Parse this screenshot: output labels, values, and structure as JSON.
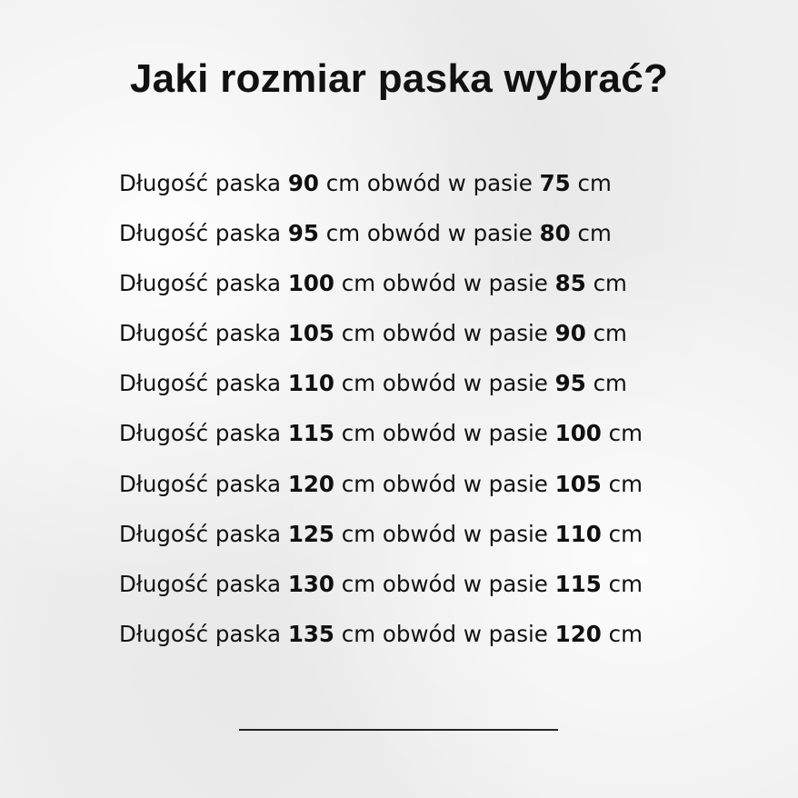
{
  "title": "Jaki rozmiar paska wybrać?",
  "labels": {
    "length_prefix": "Długość paska",
    "unit": "cm",
    "waist_text": "cm obwód w pasie"
  },
  "rows": [
    {
      "belt_length": "90",
      "waist": "75"
    },
    {
      "belt_length": "95",
      "waist": "80"
    },
    {
      "belt_length": "100",
      "waist": "85"
    },
    {
      "belt_length": "105",
      "waist": "90"
    },
    {
      "belt_length": "110",
      "waist": "95"
    },
    {
      "belt_length": "115",
      "waist": "100"
    },
    {
      "belt_length": "120",
      "waist": "105"
    },
    {
      "belt_length": "125",
      "waist": "110"
    },
    {
      "belt_length": "130",
      "waist": "115"
    },
    {
      "belt_length": "135",
      "waist": "120"
    }
  ]
}
